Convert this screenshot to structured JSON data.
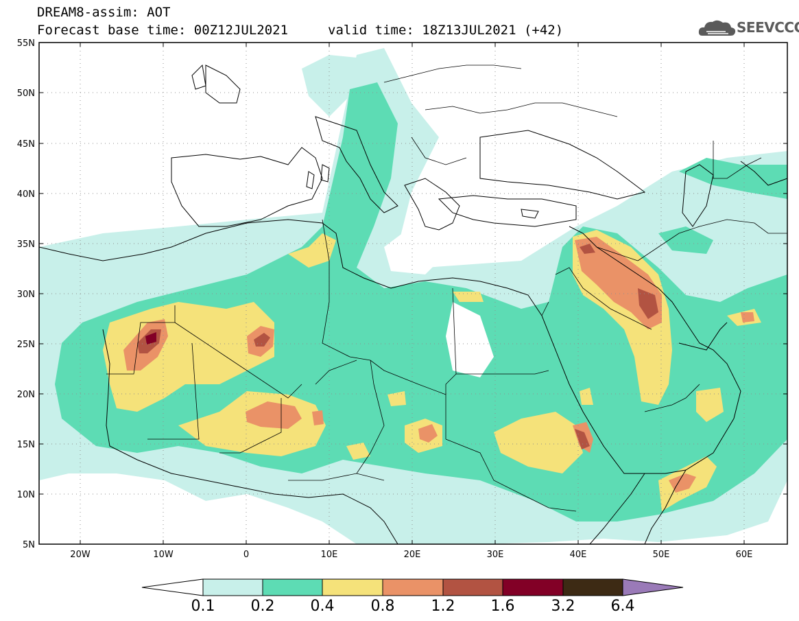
{
  "title_line1": "DREAM8-assim: AOT",
  "title_line2": "Forecast base time: 00Z12JUL2021",
  "title_line3": "valid time: 18Z13JUL2021 (+42)",
  "logo_text": "SEEVCCC",
  "logo_icon": "cloud-icon",
  "map": {
    "lon_range": [
      -25,
      65
    ],
    "lat_range": [
      5,
      55
    ],
    "lat_ticks": [
      "55N",
      "50N",
      "45N",
      "40N",
      "35N",
      "30N",
      "25N",
      "20N",
      "15N",
      "10N",
      "5N"
    ],
    "lon_ticks": [
      "20W",
      "10W",
      "0",
      "10E",
      "20E",
      "30E",
      "40E",
      "50E",
      "60E"
    ]
  },
  "colorbar": {
    "labels": [
      "0.1",
      "0.2",
      "0.4",
      "0.8",
      "1.2",
      "1.6",
      "3.2",
      "6.4"
    ],
    "colors": [
      "#c8f0ea",
      "#5ddcb4",
      "#f5e27a",
      "#ea9267",
      "#b25342",
      "#820026",
      "#3d2a14",
      "#9a7ab8"
    ]
  }
}
